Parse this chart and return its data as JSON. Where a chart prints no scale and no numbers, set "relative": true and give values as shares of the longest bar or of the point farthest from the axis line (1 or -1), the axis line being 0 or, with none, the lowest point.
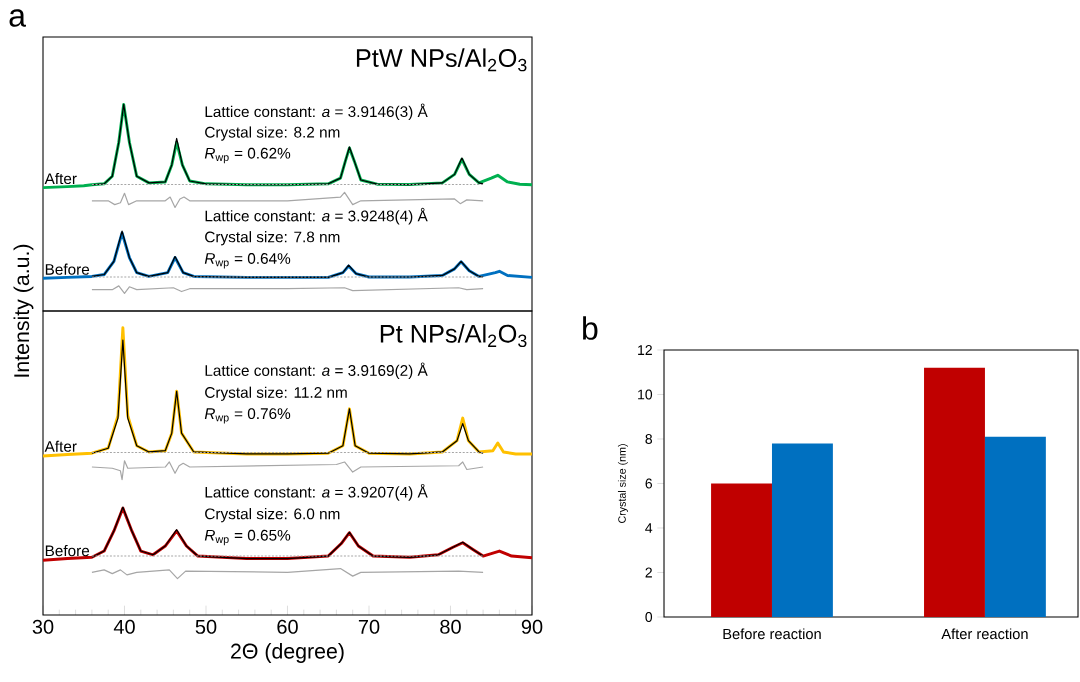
{
  "chart_data": [
    {
      "type": "line",
      "title": "PtW NPs/Al$_{2}$O$_{3}$",
      "relative": true,
      "xlim": [
        30,
        90
      ],
      "annotations": [
        "a",
        "Lattice constant: *a* = 3.9146(3) Å",
        "Crystal size: 8.2 nm",
        "*R*$_{wp}$ = 0.62%",
        "Lattice constant: *a* = 3.9248(4) Å",
        "Crystal size: 7.8 nm",
        "*R*$_{wp}$ = 0.64%"
      ],
      "series": [
        {
          "name": "After",
          "color": "#00b050",
          "x": [
            30,
            33,
            35,
            36,
            37.5,
            38.5,
            39.3,
            39.9,
            40.6,
            41.5,
            43,
            45,
            45.8,
            46.4,
            47.1,
            48,
            50,
            55,
            60,
            65,
            66.5,
            67.1,
            67.6,
            68.2,
            69,
            71,
            75,
            79,
            80.5,
            81.4,
            82.3,
            83.5,
            85,
            85.8,
            87,
            88.5,
            90
          ],
          "values": [
            0.56,
            0.565,
            0.57,
            0.575,
            0.58,
            0.62,
            0.8,
            1.0,
            0.8,
            0.62,
            0.585,
            0.59,
            0.68,
            0.8,
            0.68,
            0.595,
            0.58,
            0.575,
            0.575,
            0.58,
            0.61,
            0.7,
            0.77,
            0.7,
            0.6,
            0.578,
            0.576,
            0.585,
            0.63,
            0.71,
            0.63,
            0.585,
            0.61,
            0.625,
            0.59,
            0.578,
            0.575
          ]
        },
        {
          "color": "#000000",
          "x": [
            36,
            37.5,
            38.5,
            39.3,
            39.9,
            40.6,
            41.5,
            43,
            45,
            45.8,
            46.4,
            47.1,
            48,
            50,
            55,
            60,
            65,
            66.5,
            67.1,
            67.6,
            68.2,
            69,
            71,
            75,
            79,
            80.5,
            81.4,
            82.3,
            83.5,
            84
          ],
          "values": [
            0.575,
            0.58,
            0.62,
            0.8,
            1.0,
            0.8,
            0.62,
            0.585,
            0.59,
            0.68,
            0.82,
            0.68,
            0.595,
            0.58,
            0.575,
            0.575,
            0.58,
            0.61,
            0.7,
            0.775,
            0.7,
            0.6,
            0.578,
            0.576,
            0.585,
            0.63,
            0.716,
            0.63,
            0.585,
            0.58
          ]
        },
        {
          "color": "#a6a6a6",
          "line_style": "dotted",
          "x": [
            36,
            84
          ],
          "values": [
            0.576,
            0.576
          ]
        },
        {
          "color": "#a6a6a6",
          "x": [
            36,
            38,
            38.8,
            39.5,
            40,
            40.5,
            41.5,
            45,
            45.6,
            46.2,
            46.8,
            47.3,
            48,
            60,
            66.5,
            67,
            68,
            69,
            80.5,
            81.2,
            82,
            84
          ],
          "values": [
            0.49,
            0.49,
            0.47,
            0.48,
            0.53,
            0.47,
            0.49,
            0.49,
            0.51,
            0.455,
            0.5,
            0.51,
            0.49,
            0.49,
            0.51,
            0.535,
            0.47,
            0.49,
            0.5,
            0.475,
            0.495,
            0.49
          ]
        },
        {
          "name": "Before",
          "color": "#0070c0",
          "x": [
            30,
            33,
            36,
            37.5,
            38.7,
            39.7,
            40.6,
            41.5,
            43,
            45.3,
            46.2,
            47.2,
            48.5,
            55,
            60,
            65,
            66.8,
            67.5,
            68.4,
            70,
            75,
            79,
            80.5,
            81.3,
            82.3,
            83.5,
            85.5,
            86,
            87,
            90
          ],
          "values": [
            0.08,
            0.085,
            0.09,
            0.1,
            0.17,
            0.32,
            0.19,
            0.11,
            0.09,
            0.11,
            0.19,
            0.11,
            0.09,
            0.085,
            0.085,
            0.085,
            0.11,
            0.145,
            0.105,
            0.087,
            0.087,
            0.095,
            0.13,
            0.167,
            0.12,
            0.09,
            0.11,
            0.117,
            0.095,
            0.085
          ]
        },
        {
          "color": "#000000",
          "x": [
            36,
            37.5,
            38.7,
            39.7,
            40.6,
            41.5,
            43,
            45.3,
            46.2,
            47.2,
            48.5,
            55,
            60,
            65,
            66.8,
            67.5,
            68.4,
            70,
            75,
            79,
            80.5,
            81.3,
            82.3,
            83.5,
            84
          ],
          "values": [
            0.09,
            0.1,
            0.17,
            0.33,
            0.19,
            0.11,
            0.09,
            0.11,
            0.195,
            0.11,
            0.09,
            0.085,
            0.085,
            0.085,
            0.11,
            0.15,
            0.105,
            0.087,
            0.087,
            0.095,
            0.13,
            0.17,
            0.12,
            0.09,
            0.088
          ]
        },
        {
          "color": "#a6a6a6",
          "line_style": "dotted",
          "x": [
            36,
            84
          ],
          "values": [
            0.087,
            0.087
          ]
        },
        {
          "color": "#a6a6a6",
          "x": [
            36,
            38.5,
            39.3,
            40,
            40.6,
            41.5,
            46,
            47,
            48,
            60,
            67,
            68,
            81,
            82,
            84
          ],
          "values": [
            0.02,
            0.02,
            0.04,
            0.0,
            0.035,
            0.02,
            0.03,
            0.01,
            0.025,
            0.025,
            0.03,
            0.015,
            0.03,
            0.02,
            0.025
          ]
        }
      ]
    },
    {
      "type": "line",
      "title": "Pt NPs/Al$_{2}$O$_{3}$",
      "xlabel": "2Θ (degree)",
      "ylabel": "Intensity (a.u.)",
      "relative": true,
      "xlim": [
        30,
        90
      ],
      "xticks": [
        30,
        40,
        50,
        60,
        70,
        80,
        90
      ],
      "annotations": [
        "Lattice constant: *a* = 3.9169(2) Å",
        "Crystal size: 11.2 nm",
        "*R*$_{wp}$ = 0.76%",
        "Lattice constant: *a* = 3.9207(4) Å",
        "Crystal size: 6.0 nm",
        "*R*$_{wp}$ = 0.65%"
      ],
      "series": [
        {
          "name": "After",
          "color": "#ffc000",
          "x": [
            30,
            33,
            36,
            38,
            39.2,
            39.8,
            40.4,
            41.5,
            43,
            45,
            45.8,
            46.4,
            47,
            48.5,
            55,
            60,
            65,
            66.8,
            67.6,
            68.3,
            70,
            75,
            79,
            80.8,
            81.5,
            82.2,
            83.5,
            85.2,
            85.8,
            86.5,
            88,
            90
          ],
          "values": [
            0.489,
            0.495,
            0.5,
            0.52,
            0.65,
            1.0,
            0.65,
            0.53,
            0.505,
            0.51,
            0.58,
            0.747,
            0.58,
            0.505,
            0.497,
            0.497,
            0.5,
            0.53,
            0.677,
            0.53,
            0.5,
            0.497,
            0.505,
            0.55,
            0.64,
            0.55,
            0.505,
            0.51,
            0.541,
            0.505,
            0.497,
            0.497
          ]
        },
        {
          "color": "#000000",
          "x": [
            36,
            38,
            39.2,
            39.8,
            40.4,
            41.5,
            43,
            45,
            45.8,
            46.4,
            47,
            48.5,
            55,
            60,
            65,
            66.8,
            67.6,
            68.3,
            70,
            75,
            79,
            80.8,
            81.5,
            82.2,
            83.5,
            84
          ],
          "values": [
            0.5,
            0.52,
            0.64,
            0.951,
            0.64,
            0.53,
            0.505,
            0.51,
            0.58,
            0.747,
            0.58,
            0.505,
            0.497,
            0.497,
            0.5,
            0.53,
            0.677,
            0.53,
            0.5,
            0.497,
            0.505,
            0.55,
            0.618,
            0.55,
            0.505,
            0.5
          ]
        },
        {
          "color": "#a6a6a6",
          "line_style": "dotted",
          "x": [
            36,
            84
          ],
          "values": [
            0.503,
            0.503
          ]
        },
        {
          "color": "#a6a6a6",
          "x": [
            36,
            38.5,
            39.5,
            39.7,
            40,
            40.4,
            45,
            45.5,
            46.2,
            46.7,
            47.2,
            48,
            66,
            67,
            68,
            69,
            81,
            81.5,
            82,
            84
          ],
          "values": [
            0.445,
            0.44,
            0.43,
            0.395,
            0.47,
            0.44,
            0.445,
            0.465,
            0.42,
            0.45,
            0.46,
            0.445,
            0.455,
            0.465,
            0.425,
            0.445,
            0.45,
            0.465,
            0.435,
            0.445
          ]
        },
        {
          "name": "Before",
          "color": "#c00000",
          "x": [
            30,
            33,
            36,
            37.5,
            38.7,
            39.8,
            40.9,
            42,
            43.5,
            45,
            46.4,
            47.6,
            49,
            55,
            60,
            65,
            66.6,
            67.6,
            68.7,
            70.5,
            75,
            78.5,
            80.3,
            81.5,
            82.8,
            84,
            86,
            87.5,
            90
          ],
          "values": [
            0.073,
            0.08,
            0.085,
            0.11,
            0.19,
            0.281,
            0.19,
            0.11,
            0.095,
            0.13,
            0.19,
            0.13,
            0.09,
            0.08,
            0.08,
            0.09,
            0.14,
            0.183,
            0.13,
            0.09,
            0.085,
            0.095,
            0.125,
            0.143,
            0.115,
            0.09,
            0.11,
            0.09,
            0.083
          ]
        },
        {
          "color": "#000000",
          "x": [
            36,
            37.5,
            38.7,
            39.8,
            40.9,
            42,
            43.5,
            45,
            46.4,
            47.6,
            49,
            55,
            60,
            65,
            66.6,
            67.6,
            68.7,
            70.5,
            75,
            78.5,
            80.3,
            81.5,
            82.8,
            84
          ],
          "values": [
            0.085,
            0.11,
            0.19,
            0.285,
            0.19,
            0.11,
            0.095,
            0.13,
            0.195,
            0.13,
            0.09,
            0.08,
            0.08,
            0.09,
            0.14,
            0.185,
            0.13,
            0.09,
            0.085,
            0.095,
            0.125,
            0.145,
            0.115,
            0.09
          ]
        },
        {
          "color": "#a6a6a6",
          "line_style": "dotted",
          "x": [
            36,
            84
          ],
          "values": [
            0.09,
            0.09
          ]
        },
        {
          "color": "#a6a6a6",
          "x": [
            36,
            37.5,
            38.5,
            39.5,
            40.3,
            41.5,
            45.5,
            46.5,
            47.5,
            60,
            66.5,
            68,
            69,
            81,
            84
          ],
          "values": [
            0.025,
            0.035,
            0.02,
            0.035,
            0.015,
            0.025,
            0.035,
            0.0,
            0.03,
            0.025,
            0.04,
            0.01,
            0.025,
            0.03,
            0.025
          ]
        }
      ]
    },
    {
      "type": "bar",
      "ylabel": "Crystal size (nm)",
      "annotations": [
        "b"
      ],
      "categories": [
        "Before reaction",
        "After reaction"
      ],
      "ylim": [
        0,
        12
      ],
      "yticks": [
        0,
        2,
        4,
        6,
        8,
        10,
        12
      ],
      "series": [
        {
          "color": "#c00000",
          "values": [
            6.0,
            11.2
          ]
        },
        {
          "color": "#0070c0",
          "values": [
            7.8,
            8.1
          ]
        }
      ]
    }
  ]
}
